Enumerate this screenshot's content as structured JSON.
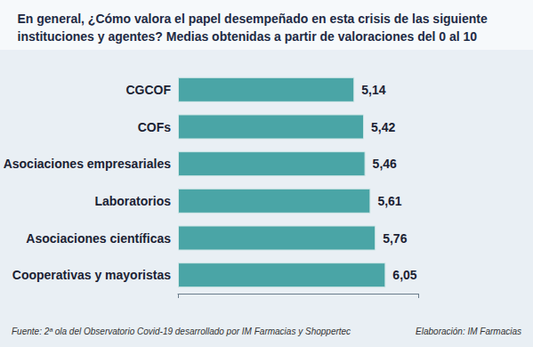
{
  "chart_data": {
    "type": "bar",
    "title": "En general, ¿Cómo valora el papel desempeñado en esta crisis de las siguiente instituciones y agentes? Medias obtenidas a partir de valoraciones del 0 al 10",
    "source": "Fuente: 2ª ola del Observatorio Covid-19 desarrollado por IM Farmacias y Shoppertec",
    "credit": "Elaboración: IM Farmacias",
    "orientation": "horizontal",
    "categories": [
      "CGCOF",
      "COFs",
      "Asociaciones empresariales",
      "Laboratorios",
      "Asociaciones científicas",
      "Cooperativas y mayoristas"
    ],
    "values": [
      5.14,
      5.42,
      5.46,
      5.61,
      5.76,
      6.05
    ],
    "value_labels": [
      "5,14",
      "5,42",
      "5,46",
      "5,61",
      "5,76",
      "6,05"
    ],
    "color": "#4aa5a6",
    "xlim": [
      0,
      7
    ],
    "xticks": [
      0,
      7
    ],
    "grid": false,
    "data_labels": true,
    "tick_labels": "y"
  }
}
